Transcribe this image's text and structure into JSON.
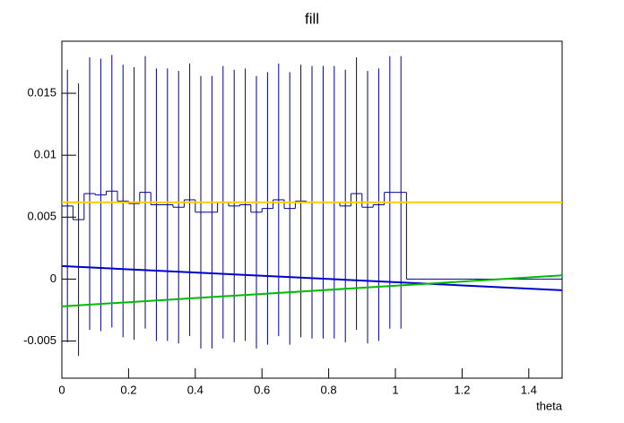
{
  "chart_data": {
    "type": "histogram",
    "title": "fill",
    "x_label": "theta",
    "bins": [
      0,
      0.0333,
      0.0667,
      0.1,
      0.1333,
      0.1667,
      0.2,
      0.2333,
      0.2667,
      0.3,
      0.3333,
      0.3667,
      0.4,
      0.4333,
      0.4667,
      0.5,
      0.5333,
      0.5667,
      0.6,
      0.6333,
      0.6667,
      0.7,
      0.7333,
      0.7667,
      0.8,
      0.8333,
      0.8667,
      0.9,
      0.9333,
      0.9667,
      1,
      1.0333,
      1.0667,
      1.1,
      1.1333,
      1.1667,
      1.2,
      1.2333,
      1.2667,
      1.3,
      1.3333,
      1.3667,
      1.4,
      1.4333,
      1.4667,
      1.5
    ],
    "values": [
      0.0059,
      0.0048,
      0.0069,
      0.0068,
      0.0071,
      0.0063,
      0.0061,
      0.007,
      0.006,
      0.006,
      0.0058,
      0.0064,
      0.0054,
      0.0054,
      0.0062,
      0.0059,
      0.006,
      0.0054,
      0.0057,
      0.0064,
      0.0057,
      0.0063,
      0.0062,
      0.0062,
      0.0062,
      0.0059,
      0.0069,
      0.0058,
      0.006,
      0.007,
      0.007,
      0,
      0,
      0,
      0,
      0,
      0,
      0,
      0,
      0,
      0,
      0,
      0,
      0,
      0
    ],
    "errors": [
      0.011,
      0.011,
      0.011,
      0.011,
      0.011,
      0.011,
      0.011,
      0.011,
      0.011,
      0.011,
      0.011,
      0.011,
      0.011,
      0.011,
      0.011,
      0.011,
      0.011,
      0.011,
      0.011,
      0.011,
      0.011,
      0.011,
      0.011,
      0.011,
      0.011,
      0.011,
      0.011,
      0.011,
      0.011,
      0.011,
      0.011,
      0,
      0,
      0,
      0,
      0,
      0,
      0,
      0,
      0,
      0,
      0,
      0,
      0,
      0
    ],
    "color": "#000099",
    "lines": [
      {
        "color": "#ffcc00",
        "x": [
          0,
          1.5
        ],
        "values": [
          0.0062,
          0.0062
        ]
      },
      {
        "color": "#0000cc",
        "x": [
          0,
          1.5
        ],
        "values": [
          0.00105,
          -0.0009
        ]
      },
      {
        "color": "#00bb00",
        "x": [
          0,
          1.5
        ],
        "values": [
          -0.0022,
          0.0003
        ]
      }
    ],
    "xlim": [
      0,
      1.5
    ],
    "ylim": [
      -0.008,
      0.0192
    ],
    "xticks": [
      0,
      0.2,
      0.4,
      0.6,
      0.8,
      1,
      1.2,
      1.4
    ],
    "yticks": [
      -0.005,
      0,
      0.005,
      0.01,
      0.015
    ]
  }
}
